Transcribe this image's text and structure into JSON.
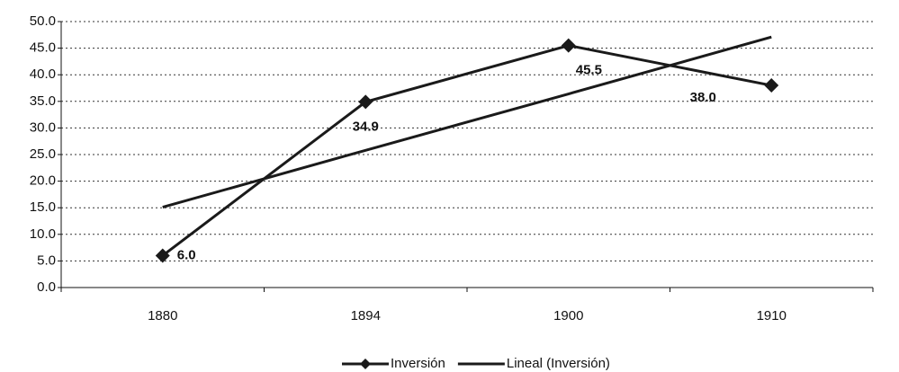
{
  "chart_data": {
    "type": "line",
    "categories": [
      "1880",
      "1894",
      "1900",
      "1910"
    ],
    "series": [
      {
        "name": "Inversión",
        "color": "#1a1a1a",
        "marker": "diamond",
        "values": [
          6.0,
          34.9,
          45.5,
          38.0
        ],
        "value_labels": [
          "6.0",
          "34.9",
          "45.5",
          "38.0"
        ]
      },
      {
        "name": "Lineal (Inversión)",
        "color": "#1a1a1a",
        "values": [
          15.1,
          25.8,
          36.4,
          47.1
        ]
      }
    ],
    "ylim": [
      0,
      50
    ],
    "yticks": [
      {
        "value": 0,
        "label": "0.0"
      },
      {
        "value": 5,
        "label": "5.0"
      },
      {
        "value": 10,
        "label": "10.0"
      },
      {
        "value": 15,
        "label": "15.0"
      },
      {
        "value": 20,
        "label": "20.0"
      },
      {
        "value": 25,
        "label": "25.0"
      },
      {
        "value": 30,
        "label": "30.0"
      },
      {
        "value": 35,
        "label": "35.0"
      },
      {
        "value": 40,
        "label": "40.0"
      },
      {
        "value": 45,
        "label": "45.0"
      },
      {
        "value": 50,
        "label": "50.0"
      }
    ],
    "grid": true,
    "legend": "bottom"
  }
}
